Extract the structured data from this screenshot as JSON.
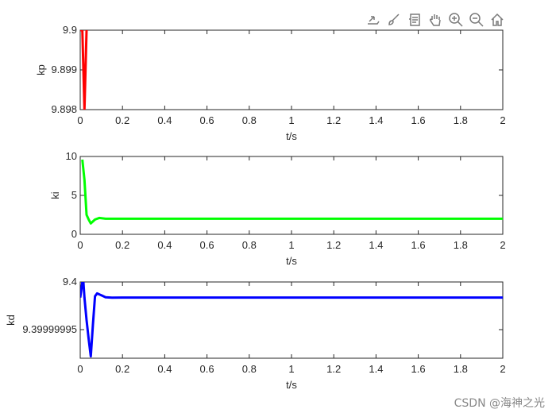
{
  "toolbar": {
    "icons": [
      "export-icon",
      "brush-icon",
      "data-tip-icon",
      "pan-icon",
      "zoom-in-icon",
      "zoom-out-icon",
      "home-icon"
    ],
    "icon_color": "#7a7a7a"
  },
  "watermark": "CSDN @海神之光",
  "chart_data": [
    {
      "type": "line",
      "ylabel": "kp",
      "xlabel": "t/s",
      "xlim": [
        0,
        2
      ],
      "ylim": [
        9.898,
        9.9
      ],
      "xticks": [
        "0",
        "0.2",
        "0.4",
        "0.6",
        "0.8",
        "1",
        "1.2",
        "1.4",
        "1.6",
        "1.8",
        "2"
      ],
      "yticks": [
        9.898,
        9.899,
        9.9
      ],
      "ytick_labels": [
        "9.898",
        "9.899",
        "9.9"
      ],
      "color": "#ff0000",
      "series": [
        {
          "x": [
            0.0,
            0.005,
            0.01,
            0.015,
            0.02,
            0.025,
            0.03
          ],
          "y": [
            9.9,
            9.9,
            9.9,
            9.899,
            9.898,
            9.899,
            9.9
          ]
        }
      ]
    },
    {
      "type": "line",
      "ylabel": "ki",
      "xlabel": "t/s",
      "xlim": [
        0,
        2
      ],
      "ylim": [
        0,
        10
      ],
      "xticks": [
        "0",
        "0.2",
        "0.4",
        "0.6",
        "0.8",
        "1",
        "1.2",
        "1.4",
        "1.6",
        "1.8",
        "2"
      ],
      "yticks": [
        0,
        5,
        10
      ],
      "ytick_labels": [
        "0",
        "5",
        "10"
      ],
      "color": "#00ff00",
      "series": [
        {
          "x": [
            0.01,
            0.02,
            0.03,
            0.04,
            0.05,
            0.07,
            0.09,
            0.12,
            0.2,
            0.5,
            1.0,
            1.5,
            2.0
          ],
          "y": [
            9.6,
            7.0,
            2.5,
            1.9,
            1.4,
            1.9,
            2.1,
            2.0,
            2.0,
            2.0,
            2.0,
            2.0,
            2.0
          ]
        }
      ]
    },
    {
      "type": "line",
      "ylabel": "kd",
      "xlabel": "t/s",
      "xlim": [
        0,
        2
      ],
      "ylim": [
        9.39999992,
        9.4
      ],
      "xticks": [
        "0",
        "0.2",
        "0.4",
        "0.6",
        "0.8",
        "1",
        "1.2",
        "1.4",
        "1.6",
        "1.8",
        "2"
      ],
      "yticks": [
        9.39999995,
        9.4
      ],
      "ytick_labels": [
        "9.39999995",
        "9.4"
      ],
      "color": "#0000ff",
      "series": [
        {
          "x": [
            0.0,
            0.01,
            0.015,
            0.02,
            0.03,
            0.04,
            0.05,
            0.06,
            0.07,
            0.08,
            0.1,
            0.12,
            0.15,
            0.2,
            0.3,
            2.0
          ],
          "y": [
            9.3999999836,
            9.4,
            9.4,
            9.3999999836,
            9.39999996,
            9.39999994,
            9.399999922,
            9.399999955,
            9.399999985,
            9.399999988,
            9.399999986,
            9.399999984,
            9.3999999835,
            9.3999999836,
            9.3999999836,
            9.3999999836
          ]
        }
      ]
    }
  ]
}
